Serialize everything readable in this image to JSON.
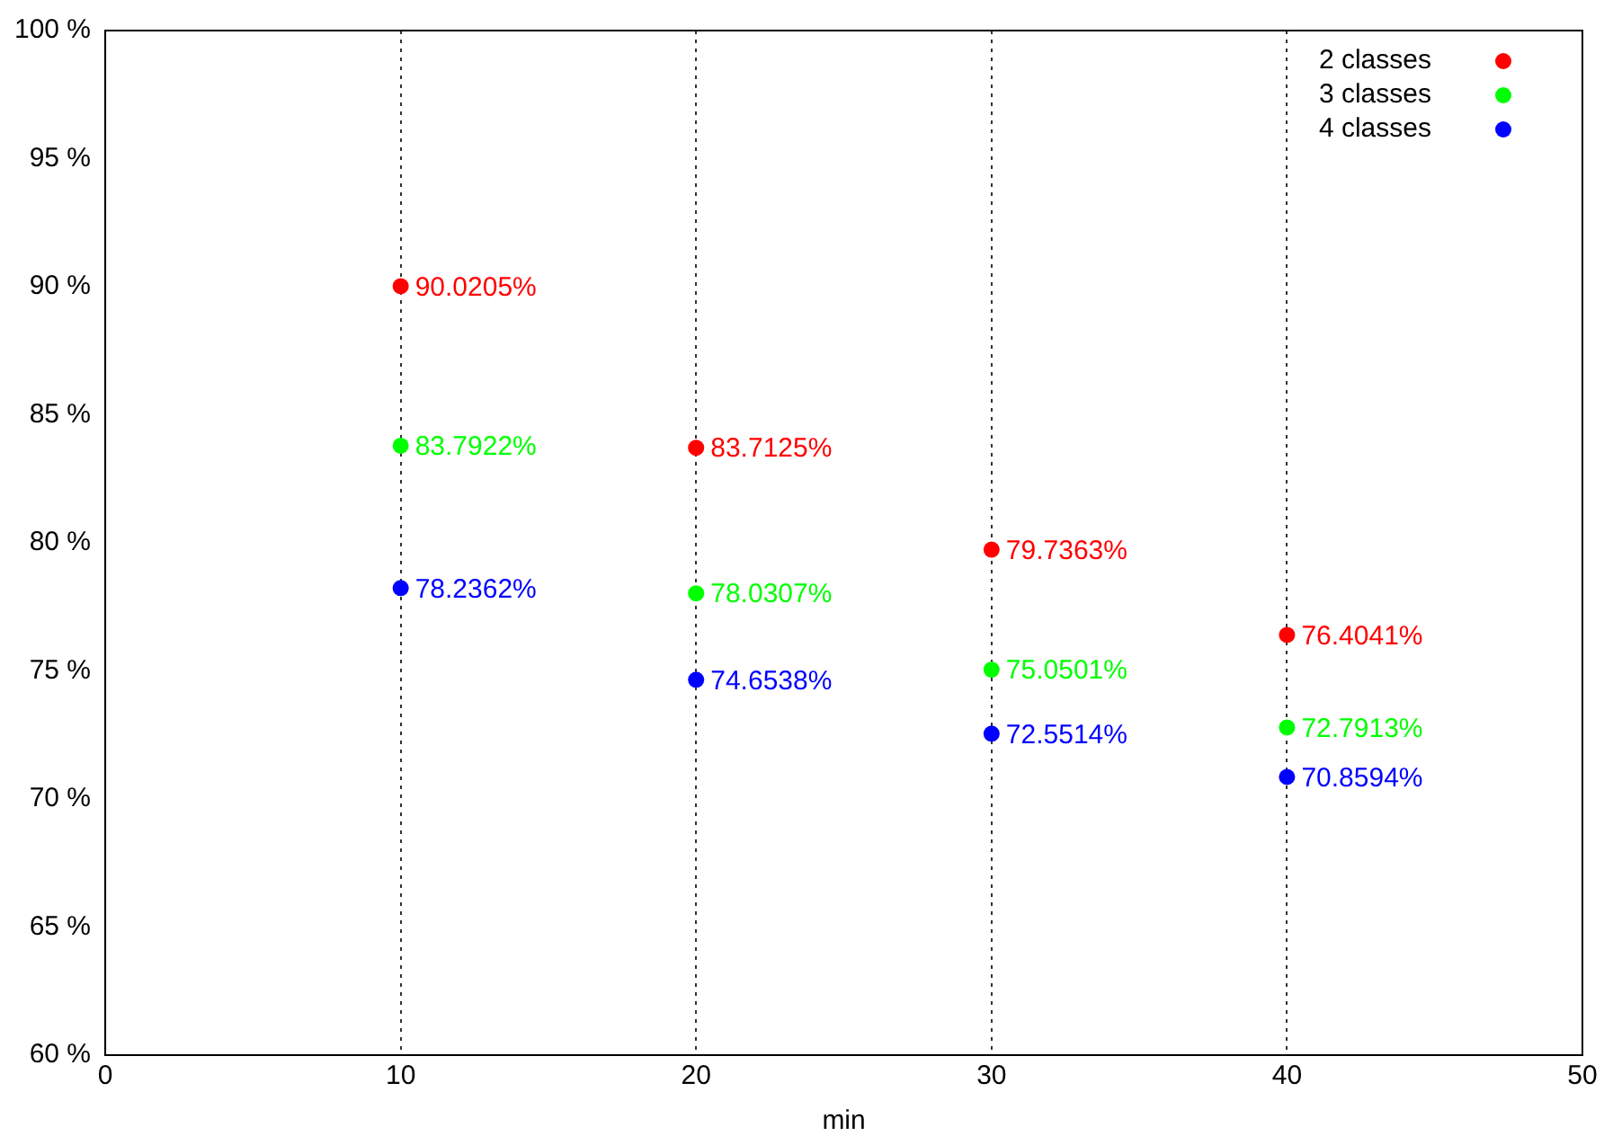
{
  "chart_data": {
    "type": "scatter",
    "xlabel": "min",
    "xlim": [
      0,
      50
    ],
    "xticks": [
      0,
      10,
      20,
      30,
      40,
      50
    ],
    "ylim": [
      60,
      100
    ],
    "yticks": [
      {
        "value": 60,
        "label": "60 %"
      },
      {
        "value": 65,
        "label": "65 %"
      },
      {
        "value": 70,
        "label": "70 %"
      },
      {
        "value": 75,
        "label": "75 %"
      },
      {
        "value": 80,
        "label": "80 %"
      },
      {
        "value": 85,
        "label": "85 %"
      },
      {
        "value": 90,
        "label": "90 %"
      },
      {
        "value": 95,
        "label": "95 %"
      },
      {
        "value": 100,
        "label": "100 %"
      }
    ],
    "x": [
      10,
      20,
      30,
      40
    ],
    "grid": "x",
    "legend": "top right",
    "marker": "circle",
    "series": [
      {
        "name": "2 classes",
        "color": "#ff0000",
        "values": [
          90.0205,
          83.7125,
          79.7363,
          76.4041
        ],
        "value_labels": [
          "90.0205%",
          "83.7125%",
          "79.7363%",
          "76.4041%"
        ]
      },
      {
        "name": "3 classes",
        "color": "#00ff00",
        "values": [
          83.7922,
          78.0307,
          75.0501,
          72.7913
        ],
        "value_labels": [
          "83.7922%",
          "78.0307%",
          "75.0501%",
          "72.7913%"
        ]
      },
      {
        "name": "4 classes",
        "color": "#0000ff",
        "values": [
          78.2362,
          74.6538,
          72.5514,
          70.8594
        ],
        "value_labels": [
          "78.2362%",
          "74.6538%",
          "72.5514%",
          "70.8594%"
        ]
      }
    ]
  }
}
